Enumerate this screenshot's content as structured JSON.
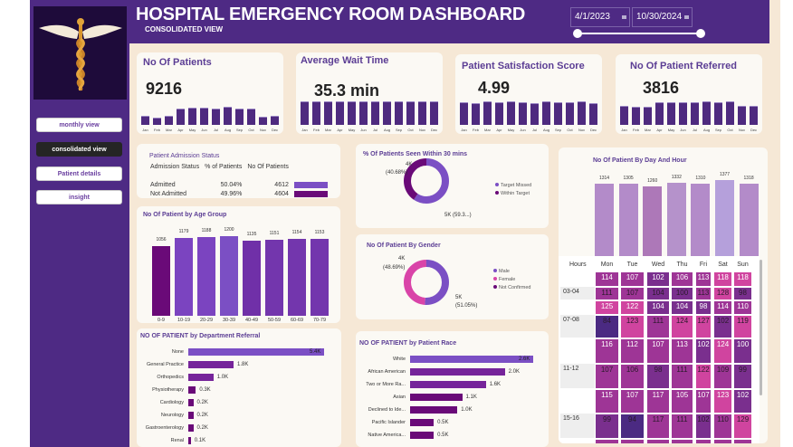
{
  "header": {
    "title": "HOSPITAL EMERGENCY ROOM DASHBOARD",
    "subtitle": "CONSOLIDATED VIEW",
    "date_start": "4/1/2023",
    "date_end": "10/30/2024"
  },
  "sidebar": {
    "logo": "caduceus-logo",
    "items": [
      {
        "label": "monthly view",
        "active": false
      },
      {
        "label": "consolidated view",
        "active": true
      },
      {
        "label": "Patient details",
        "active": false
      },
      {
        "label": "insight",
        "active": false
      }
    ]
  },
  "months": [
    "Jan",
    "Feb",
    "Mar",
    "Apr",
    "May",
    "Jun",
    "Jul",
    "Aug",
    "Sep",
    "Oct",
    "Nov",
    "Dec"
  ],
  "kpis": [
    {
      "title": "No Of Patients",
      "value": "9216",
      "monthly_relative": [
        30,
        25,
        30,
        55,
        60,
        60,
        55,
        62,
        55,
        57,
        27,
        30
      ]
    },
    {
      "title": "Average Wait Time",
      "value": "35.3 min",
      "monthly_relative": [
        60,
        60,
        60,
        60,
        60,
        60,
        60,
        60,
        60,
        60,
        60,
        60
      ]
    },
    {
      "title": "Patient Satisfaction Score",
      "value": "4.99",
      "monthly_relative": [
        58,
        56,
        61,
        58,
        60,
        58,
        57,
        60,
        58,
        58,
        60,
        57
      ]
    },
    {
      "title": "No Of Patient Referred",
      "value": "3816",
      "monthly_relative": [
        50,
        47,
        48,
        60,
        60,
        60,
        60,
        62,
        60,
        62,
        50,
        50
      ]
    }
  ],
  "admission": {
    "title": "Patient Admission Status",
    "headers": [
      "Admission Status",
      "% of Patients",
      "No Of Patients"
    ],
    "rows": [
      {
        "status": "Admitted",
        "pct": "50.04%",
        "count": "4612",
        "value": 4612,
        "color": "#7b4fc4"
      },
      {
        "status": "Not Admitted",
        "pct": "49.96%",
        "count": "4604",
        "value": 4604,
        "color": "#6a0a78"
      }
    ]
  },
  "chart_data": [
    {
      "type": "bar",
      "title": "No Of Patient by Age Group",
      "categories": [
        "0-9",
        "10-19",
        "20-29",
        "30-39",
        "40-49",
        "50-59",
        "60-69",
        "70-79"
      ],
      "values": [
        1056,
        1179,
        1188,
        1200,
        1135,
        1151,
        1154,
        1153
      ],
      "labels": [
        "1056",
        "1179",
        "1188",
        "1200",
        "1135",
        "1151",
        "1154",
        "1153"
      ],
      "colors": [
        "#6a0a78",
        "#7b44c0",
        "#7b44c0",
        "#7b4fc4",
        "#7030a8",
        "#7336ad",
        "#7336ad",
        "#7336ad"
      ]
    },
    {
      "type": "pie",
      "title": "% Of Patients Seen Within 30 mins",
      "slices": [
        {
          "name": "Target Missed",
          "value": 59.32,
          "label": "5K (59.3...)",
          "color": "#7b4fc4"
        },
        {
          "name": "Within Target",
          "value": 40.68,
          "label": "4K",
          "sublabel": "(40.68%)",
          "color": "#6a0a78"
        }
      ]
    },
    {
      "type": "pie",
      "title": "No Of Patient By Gender",
      "slices": [
        {
          "name": "Male",
          "value": 51.05,
          "label": "5K",
          "sublabel": "(51.05%)",
          "color": "#7b4fc4"
        },
        {
          "name": "Female",
          "value": 48.69,
          "label": "4K",
          "sublabel": "(48.69%)",
          "color": "#d944a8"
        },
        {
          "name": "Not Confirmed",
          "value": 0.26,
          "color": "#6a0a78"
        }
      ]
    },
    {
      "type": "bar",
      "title": "No Of Patient By Day And Hour",
      "categories": [
        "Mon",
        "Tue",
        "Wed",
        "Thu",
        "Fri",
        "Sat",
        "Sun"
      ],
      "values": [
        1314,
        1305,
        1260,
        1332,
        1310,
        1377,
        1318
      ],
      "labels": [
        "1314",
        "1305",
        "1260",
        "1332",
        "1310",
        "1377",
        "1318"
      ]
    },
    {
      "type": "bar",
      "orientation": "horizontal",
      "title": "NO OF PATIENT by Department Referral",
      "categories": [
        "None",
        "General Practice",
        "Orthopedics",
        "Physiotherapy",
        "Cardiology",
        "Neurology",
        "Gastroenterology",
        "Renal"
      ],
      "values": [
        5.4,
        1.8,
        1.0,
        0.3,
        0.2,
        0.2,
        0.2,
        0.1
      ],
      "labels": [
        "5.4K",
        "1.8K",
        "1.0K",
        "0.3K",
        "0.2K",
        "0.2K",
        "0.2K",
        "0.1K"
      ]
    },
    {
      "type": "bar",
      "orientation": "horizontal",
      "title": "NO OF PATIENT by Patient Race",
      "categories": [
        "White",
        "African American",
        "Two or More Ra...",
        "Asian",
        "Declined to Ide...",
        "Pacific Islander",
        "Native America..."
      ],
      "values": [
        2.6,
        2.0,
        1.6,
        1.1,
        1.0,
        0.5,
        0.5
      ],
      "labels": [
        "2.6K",
        "2.0K",
        "1.6K",
        "1.1K",
        "1.0K",
        "0.5K",
        "0.5K"
      ]
    }
  ],
  "heatmap": {
    "hours_header": "Hours",
    "days": [
      "Mon",
      "Tue",
      "Wed",
      "Thu",
      "Fri",
      "Sat",
      "Sun"
    ],
    "rows": [
      {
        "hour": "",
        "values": [
          114,
          107,
          102,
          106,
          113,
          118,
          118
        ]
      },
      {
        "hour": "03-04",
        "values": [
          111,
          107,
          104,
          100,
          113,
          128,
          98
        ]
      },
      {
        "hour": "",
        "values": [
          125,
          122,
          104,
          104,
          98,
          114,
          110
        ]
      },
      {
        "hour": "07-08",
        "values": [
          84,
          123,
          111,
          124,
          127,
          102,
          119
        ]
      },
      {
        "hour": "",
        "values": [
          116,
          112,
          107,
          113,
          102,
          124,
          100
        ]
      },
      {
        "hour": "11-12",
        "values": [
          107,
          106,
          98,
          111,
          122,
          109,
          99
        ]
      },
      {
        "hour": "",
        "values": [
          115,
          107,
          117,
          105,
          107,
          123,
          102
        ]
      },
      {
        "hour": "15-16",
        "values": [
          99,
          94,
          117,
          111,
          102,
          110,
          129
        ]
      }
    ]
  }
}
